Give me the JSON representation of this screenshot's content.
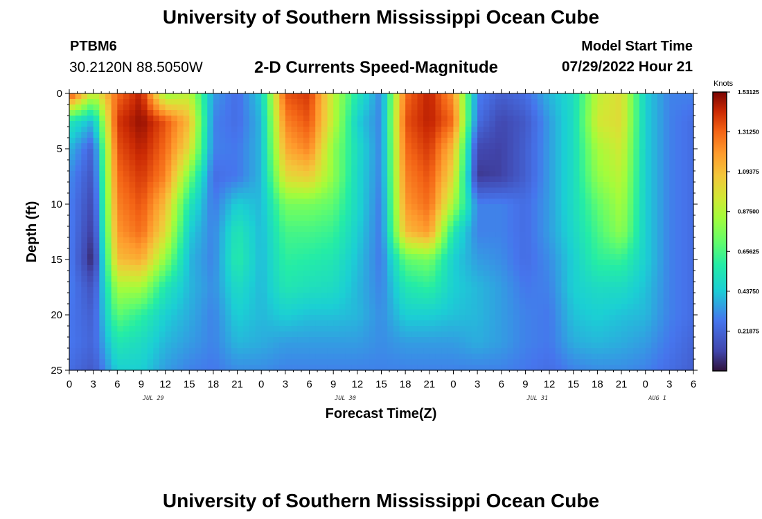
{
  "header": {
    "title": "University of Southern Mississippi Ocean Cube",
    "station": "PTBM6",
    "coords": "30.2120N  88.5050W",
    "subtitle": "2-D Currents Speed-Magnitude",
    "model_start_label": "Model Start Time",
    "model_start_value": "07/29/2022 Hour 21"
  },
  "footer": {
    "title": "University of Southern Mississippi Ocean Cube"
  },
  "chart_data": {
    "type": "heatmap",
    "title": "2-D Currents Speed-Magnitude",
    "xlabel": "Forecast Time(Z)",
    "ylabel": "Depth (ft)",
    "colorbar_label": "Knots",
    "ylim": [
      0,
      25
    ],
    "y_ticks": [
      0,
      5,
      10,
      15,
      20,
      25
    ],
    "x_tick_labels": [
      "0",
      "3",
      "6",
      "9",
      "12",
      "15",
      "18",
      "21",
      "0",
      "3",
      "6",
      "9",
      "12",
      "15",
      "18",
      "21",
      "0",
      "3",
      "6",
      "9",
      "12",
      "15",
      "18",
      "21",
      "0",
      "3",
      "6"
    ],
    "date_labels": [
      {
        "text": "JUL 29",
        "index": 3.5
      },
      {
        "text": "JUL 30",
        "index": 11.5
      },
      {
        "text": "JUL 31",
        "index": 19.5
      },
      {
        "text": "AUG 1",
        "index": 24.5
      }
    ],
    "colorbar_ticks": [
      "1.53125",
      "1.31250",
      "1.09375",
      "0.87500",
      "0.65625",
      "0.43750",
      "0.21875"
    ],
    "value_range": [
      0,
      1.53125
    ],
    "depth_samples": [
      0,
      2.5,
      5,
      7.5,
      10,
      12.5,
      15,
      17.5,
      20,
      22.5,
      25
    ],
    "time_hours": [
      0,
      3,
      6,
      9,
      12,
      15,
      18,
      21,
      24,
      27,
      30,
      33,
      36,
      39,
      42,
      45,
      48,
      51,
      54,
      57,
      60,
      63,
      66,
      69,
      72,
      75,
      78
    ],
    "speed_knots": [
      [
        1.4,
        0.9,
        1.3,
        1.45,
        0.8,
        0.9,
        0.35,
        0.25,
        0.45,
        1.35,
        1.4,
        0.9,
        0.55,
        0.3,
        1.3,
        1.45,
        1.2,
        0.3,
        0.2,
        0.25,
        0.4,
        0.5,
        0.9,
        1.0,
        0.45,
        0.3,
        0.3
      ],
      [
        0.55,
        0.4,
        1.4,
        1.5,
        1.35,
        1.1,
        0.3,
        0.25,
        0.4,
        1.25,
        1.35,
        0.9,
        0.45,
        0.3,
        1.35,
        1.45,
        1.3,
        0.25,
        0.12,
        0.18,
        0.35,
        0.5,
        0.95,
        1.0,
        0.45,
        0.3,
        0.25
      ],
      [
        0.4,
        0.2,
        1.35,
        1.45,
        1.3,
        1.0,
        0.3,
        0.28,
        0.4,
        1.15,
        1.25,
        0.8,
        0.5,
        0.3,
        1.3,
        1.4,
        1.1,
        0.12,
        0.1,
        0.2,
        0.35,
        0.5,
        0.85,
        0.95,
        0.45,
        0.3,
        0.25
      ],
      [
        0.32,
        0.16,
        1.3,
        1.4,
        1.25,
        0.75,
        0.25,
        0.28,
        0.4,
        1.0,
        1.05,
        0.8,
        0.48,
        0.3,
        1.25,
        1.35,
        1.0,
        0.08,
        0.1,
        0.2,
        0.35,
        0.5,
        0.8,
        0.9,
        0.45,
        0.3,
        0.25
      ],
      [
        0.3,
        0.12,
        1.25,
        1.35,
        1.1,
        0.55,
        0.28,
        0.45,
        0.4,
        0.75,
        0.75,
        0.7,
        0.48,
        0.28,
        1.2,
        1.3,
        0.85,
        0.3,
        0.3,
        0.25,
        0.35,
        0.5,
        0.7,
        0.85,
        0.45,
        0.3,
        0.25
      ],
      [
        0.3,
        0.08,
        1.2,
        1.3,
        1.0,
        0.45,
        0.3,
        0.55,
        0.4,
        0.65,
        0.65,
        0.62,
        0.45,
        0.28,
        1.1,
        1.2,
        0.55,
        0.3,
        0.3,
        0.25,
        0.35,
        0.48,
        0.65,
        0.8,
        0.45,
        0.3,
        0.25
      ],
      [
        0.3,
        0.03,
        1.1,
        1.15,
        0.8,
        0.4,
        0.3,
        0.58,
        0.4,
        0.6,
        0.58,
        0.55,
        0.42,
        0.28,
        0.7,
        0.75,
        0.45,
        0.35,
        0.32,
        0.25,
        0.32,
        0.45,
        0.6,
        0.62,
        0.45,
        0.3,
        0.25
      ],
      [
        0.3,
        0.15,
        0.85,
        0.85,
        0.55,
        0.4,
        0.32,
        0.5,
        0.4,
        0.55,
        0.52,
        0.5,
        0.4,
        0.3,
        0.55,
        0.6,
        0.45,
        0.4,
        0.35,
        0.28,
        0.3,
        0.45,
        0.5,
        0.5,
        0.42,
        0.3,
        0.25
      ],
      [
        0.28,
        0.2,
        0.7,
        0.6,
        0.45,
        0.38,
        0.3,
        0.45,
        0.4,
        0.45,
        0.42,
        0.42,
        0.4,
        0.32,
        0.45,
        0.45,
        0.42,
        0.4,
        0.35,
        0.3,
        0.28,
        0.42,
        0.45,
        0.42,
        0.4,
        0.3,
        0.25
      ],
      [
        0.28,
        0.22,
        0.55,
        0.5,
        0.4,
        0.35,
        0.3,
        0.4,
        0.38,
        0.35,
        0.35,
        0.35,
        0.35,
        0.32,
        0.35,
        0.35,
        0.35,
        0.38,
        0.35,
        0.3,
        0.28,
        0.38,
        0.4,
        0.38,
        0.35,
        0.28,
        0.22
      ],
      [
        0.25,
        0.18,
        0.45,
        0.45,
        0.35,
        0.3,
        0.28,
        0.32,
        0.32,
        0.3,
        0.3,
        0.3,
        0.3,
        0.3,
        0.3,
        0.3,
        0.3,
        0.3,
        0.3,
        0.28,
        0.25,
        0.3,
        0.32,
        0.32,
        0.3,
        0.25,
        0.2
      ]
    ]
  }
}
